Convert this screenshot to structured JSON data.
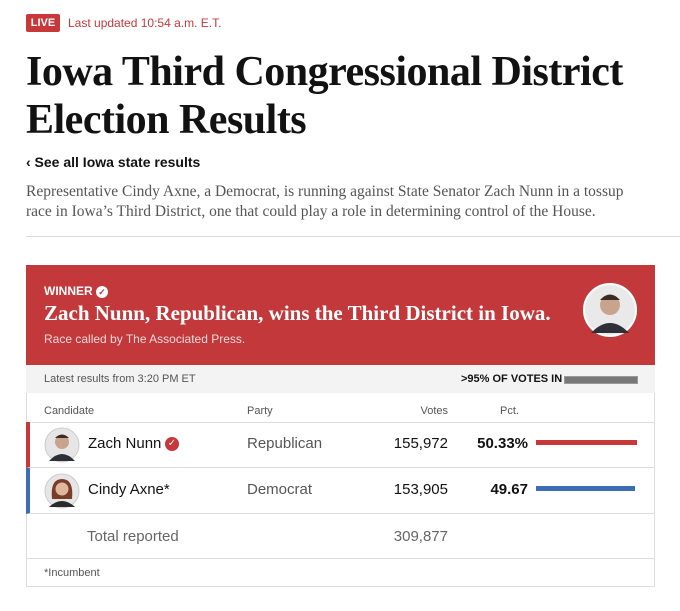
{
  "header": {
    "live": "LIVE",
    "updated": "Last updated 10:54 a.m. E.T.",
    "title": "Iowa Third Congressional District Election Results",
    "back_link": "‹ See all Iowa state results",
    "description": "Representative Cindy Axne, a Democrat, is running against State Senator Zach Nunn in a tossup race in Iowa’s Third District, one that could play a role in determining control of the House."
  },
  "banner": {
    "label": "WINNER",
    "headline": "Zach Nunn, Republican, wins the Third District in Iowa.",
    "note": "Race called by The Associated Press."
  },
  "table": {
    "latest": "Latest results from 3:20 PM ET",
    "reporting": ">95% OF VOTES IN",
    "columns": [
      "Candidate",
      "Party",
      "Votes",
      "Pct."
    ],
    "rows": [
      {
        "name": "Zach Nunn",
        "party": "Republican",
        "votes": "155,972",
        "pct": {
          "value": 50.33,
          "label": "50.33%"
        },
        "color": "#c8383a"
      },
      {
        "name": "Cindy Axne*",
        "party": "Democrat",
        "votes": "153,905",
        "pct": {
          "value": 49.67,
          "label": "49.67"
        },
        "color": "#3d6db4"
      }
    ],
    "total_label": "Total reported",
    "total_votes": "309,877",
    "footnote": "*Incumbent"
  }
}
